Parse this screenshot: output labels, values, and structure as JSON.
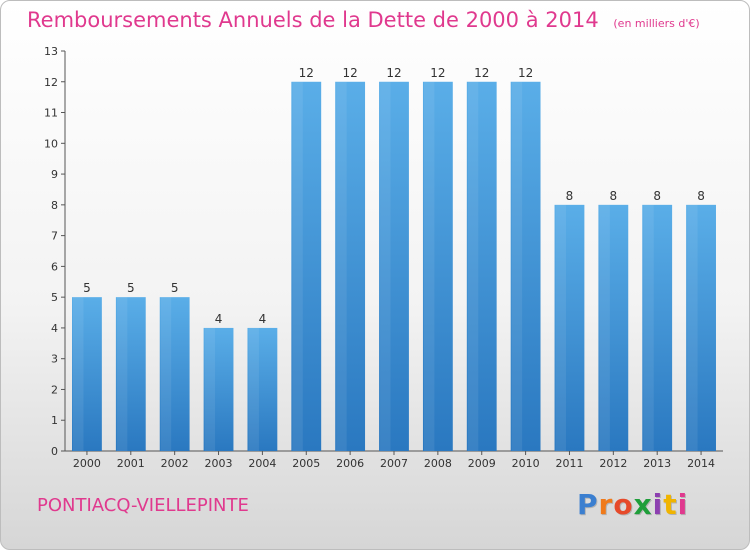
{
  "chart_data": {
    "type": "bar",
    "title": "Remboursements Annuels de la Dette de 2000 à 2014",
    "unit": "(en milliers d'€)",
    "categories": [
      "2000",
      "2001",
      "2002",
      "2003",
      "2004",
      "2005",
      "2006",
      "2007",
      "2008",
      "2009",
      "2010",
      "2011",
      "2012",
      "2013",
      "2014"
    ],
    "values": [
      5,
      5,
      5,
      4,
      4,
      12,
      12,
      12,
      12,
      12,
      12,
      8,
      8,
      8,
      8
    ],
    "ylim": [
      0,
      13
    ],
    "yticks": [
      0,
      1,
      2,
      3,
      4,
      5,
      6,
      7,
      8,
      9,
      10,
      11,
      12,
      13
    ],
    "grid": false,
    "bar_color": "#4a9bdc",
    "bar_color_dark": "#2a78c0"
  },
  "footer": {
    "commune": "PONTIACQ-VIELLEPINTE",
    "logo_letters": [
      "P",
      "r",
      "o",
      "x",
      "i",
      "t",
      "i"
    ],
    "logo_colors": [
      "#3b7fd0",
      "#f07a1a",
      "#e64a2a",
      "#1f9e3a",
      "#8c3fb0",
      "#f0b400",
      "#e0398e"
    ]
  }
}
